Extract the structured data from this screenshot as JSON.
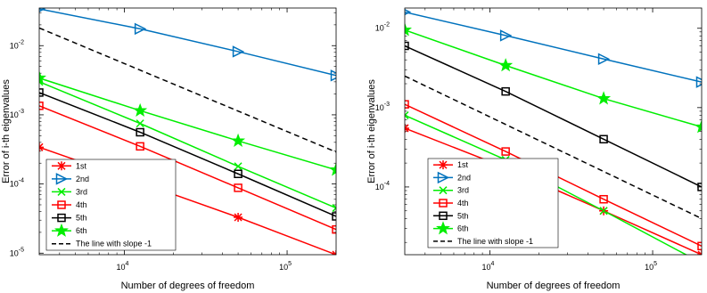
{
  "chart_data": [
    {
      "type": "line",
      "xlabel": "Number of degrees of freedom",
      "ylabel": "Error of i-th eigenvalues",
      "xscale": "log",
      "yscale": "log",
      "xlim": [
        3000,
        200000
      ],
      "ylim": [
        9.5e-06,
        0.035
      ],
      "xticks": [
        10000,
        100000
      ],
      "xtick_labels": [
        [
          "10",
          "4"
        ],
        [
          "10",
          "5"
        ]
      ],
      "yticks": [
        1e-05,
        0.0001,
        0.001,
        0.01
      ],
      "ytick_labels": [
        [
          "10",
          "-5"
        ],
        [
          "10",
          "-4"
        ],
        [
          "10",
          "-3"
        ],
        [
          "10",
          "-2"
        ]
      ],
      "legend_position": "bottom-left",
      "series": [
        {
          "name": "1st",
          "color": "#ff0000",
          "marker": "star-x",
          "x": [
            3000,
            12500,
            50000,
            200000
          ],
          "y": [
            0.00034,
            0.000105,
            3.3e-05,
            9.5e-06
          ]
        },
        {
          "name": "2nd",
          "color": "#0072bd",
          "marker": "triangle-right",
          "x": [
            3000,
            12500,
            50000,
            200000
          ],
          "y": [
            0.034,
            0.0175,
            0.0082,
            0.0037
          ]
        },
        {
          "name": "3rd",
          "color": "#00ee00",
          "marker": "x",
          "x": [
            3000,
            12500,
            50000,
            200000
          ],
          "y": [
            0.003,
            0.00075,
            0.00018,
            4.5e-05
          ]
        },
        {
          "name": "4th",
          "color": "#ff0000",
          "marker": "square",
          "x": [
            3000,
            12500,
            50000,
            200000
          ],
          "y": [
            0.00135,
            0.00035,
            8.8e-05,
            2.2e-05
          ]
        },
        {
          "name": "5th",
          "color": "#000000",
          "marker": "square",
          "x": [
            3000,
            12500,
            50000,
            200000
          ],
          "y": [
            0.0021,
            0.00056,
            0.00014,
            3.4e-05
          ]
        },
        {
          "name": "6th",
          "color": "#00ee00",
          "marker": "star",
          "x": [
            3000,
            12500,
            50000,
            200000
          ],
          "y": [
            0.0034,
            0.00115,
            0.00042,
            0.00016
          ]
        },
        {
          "name": "The line with slope -1",
          "color": "#000000",
          "dashed": true,
          "x": [
            3000,
            200000
          ],
          "y": [
            0.018,
            0.00029
          ]
        }
      ]
    },
    {
      "type": "line",
      "xlabel": "Number of degrees of freedom",
      "ylabel": "Error of i-th eigenvalues",
      "xscale": "log",
      "yscale": "log",
      "xlim": [
        3000,
        200000
      ],
      "ylim": [
        1.4e-05,
        0.018
      ],
      "xticks": [
        10000,
        100000
      ],
      "xtick_labels": [
        [
          "10",
          "4"
        ],
        [
          "10",
          "5"
        ]
      ],
      "yticks": [
        0.0001,
        0.001,
        0.01
      ],
      "ytick_labels": [
        [
          "10",
          "-4"
        ],
        [
          "10",
          "-3"
        ],
        [
          "10",
          "-2"
        ]
      ],
      "legend_position": "bottom-left",
      "series": [
        {
          "name": "1st",
          "color": "#ff0000",
          "marker": "star-x",
          "x": [
            3000,
            12500,
            50000,
            200000
          ],
          "y": [
            0.00055,
            0.000175,
            5e-05,
            1.4e-05
          ]
        },
        {
          "name": "2nd",
          "color": "#0072bd",
          "marker": "triangle-right",
          "x": [
            3000,
            12500,
            50000,
            200000
          ],
          "y": [
            0.016,
            0.0081,
            0.0041,
            0.0021
          ]
        },
        {
          "name": "3rd",
          "color": "#00ee00",
          "marker": "x",
          "x": [
            3000,
            12500,
            50000,
            200000
          ],
          "y": [
            0.0008,
            0.00022,
            5e-05,
            1.1e-05
          ]
        },
        {
          "name": "4th",
          "color": "#ff0000",
          "marker": "square",
          "x": [
            3000,
            12500,
            50000,
            200000
          ],
          "y": [
            0.0011,
            0.00028,
            7e-05,
            1.8e-05
          ]
        },
        {
          "name": "5th",
          "color": "#000000",
          "marker": "square",
          "x": [
            3000,
            12500,
            50000,
            200000
          ],
          "y": [
            0.006,
            0.0016,
            0.0004,
            0.0001
          ]
        },
        {
          "name": "6th",
          "color": "#00ee00",
          "marker": "star",
          "x": [
            3000,
            12500,
            50000,
            200000
          ],
          "y": [
            0.0095,
            0.0034,
            0.0013,
            0.00057
          ]
        },
        {
          "name": "The line with slope -1",
          "color": "#000000",
          "dashed": true,
          "x": [
            3000,
            200000
          ],
          "y": [
            0.0025,
            4e-05
          ]
        }
      ]
    }
  ]
}
